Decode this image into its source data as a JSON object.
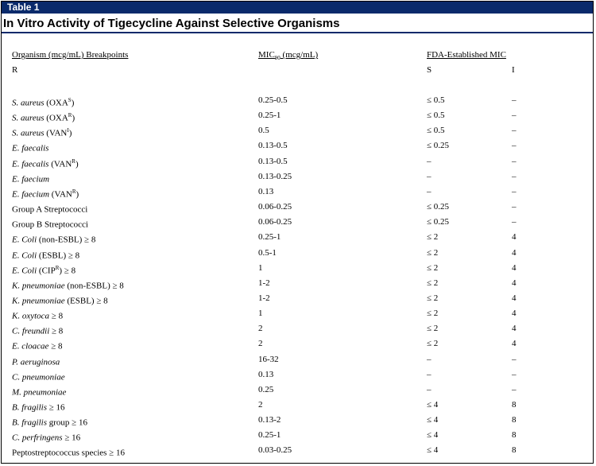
{
  "table_label": "Table 1",
  "title": "In Vitro Activity of Tigecycline Against Selective Organisms",
  "headers": {
    "organism": "Organism (mcg/mL) Breakpoints",
    "mic_prefix": "MIC",
    "mic_sub": "90",
    "mic_suffix": " (mcg/mL)",
    "fda": "FDA-Established MIC",
    "r": "R",
    "s": "S",
    "i": "I"
  },
  "rows": [
    {
      "org_italic": "S. aureus",
      "org_rest": " (OXA",
      "org_sup": "S",
      "org_tail": ")",
      "mic": "0.25-0.5",
      "s": "≤ 0.5",
      "i": "–"
    },
    {
      "org_italic": "S. aureus",
      "org_rest": " (OXA",
      "org_sup": "R",
      "org_tail": ")",
      "mic": "0.25-1",
      "s": "≤ 0.5",
      "i": "–"
    },
    {
      "org_italic": "S. aureus",
      "org_rest": " (VAN",
      "org_sup": "I",
      "org_tail": ")",
      "mic": "0.5",
      "s": "≤ 0.5",
      "i": "–"
    },
    {
      "org_italic": "E. faecalis",
      "org_rest": "",
      "org_sup": "",
      "org_tail": "",
      "mic": "0.13-0.5",
      "s": "≤ 0.25",
      "i": "–"
    },
    {
      "org_italic": "E. faecalis",
      "org_rest": " (VAN",
      "org_sup": "R",
      "org_tail": ")",
      "mic": "0.13-0.5",
      "s": "–",
      "i": "–"
    },
    {
      "org_italic": "E. faecium",
      "org_rest": "",
      "org_sup": "",
      "org_tail": "",
      "mic": "0.13-0.25",
      "s": "–",
      "i": "–"
    },
    {
      "org_italic": "E. faecium",
      "org_rest": " (VAN",
      "org_sup": "R",
      "org_tail": ")",
      "mic": "0.13",
      "s": "–",
      "i": "–"
    },
    {
      "org_italic": "",
      "org_rest": "Group A Streptococci",
      "org_sup": "",
      "org_tail": "",
      "mic": "0.06-0.25",
      "s": "≤ 0.25",
      "i": "–"
    },
    {
      "org_italic": "",
      "org_rest": "Group B Streptococci",
      "org_sup": "",
      "org_tail": "",
      "mic": "0.06-0.25",
      "s": "≤ 0.25",
      "i": "–"
    },
    {
      "org_italic": "E. Coli",
      "org_rest": " (non-ESBL) ≥ 8",
      "org_sup": "",
      "org_tail": "",
      "mic": "0.25-1",
      "s": "≤ 2",
      "i": "4"
    },
    {
      "org_italic": "E. Coli",
      "org_rest": " (ESBL) ≥ 8",
      "org_sup": "",
      "org_tail": "",
      "mic": "0.5-1",
      "s": "≤ 2",
      "i": "4"
    },
    {
      "org_italic": "E. Coli",
      "org_rest": " (CIP",
      "org_sup": "R",
      "org_tail": ") ≥ 8",
      "mic": "1",
      "s": "≤ 2",
      "i": "4"
    },
    {
      "org_italic": "K. pneumoniae",
      "org_rest": " (non-ESBL) ≥ 8",
      "org_sup": "",
      "org_tail": "",
      "mic": "1-2",
      "s": "≤ 2",
      "i": "4"
    },
    {
      "org_italic": "K. pneumoniae",
      "org_rest": " (ESBL) ≥ 8",
      "org_sup": "",
      "org_tail": "",
      "mic": "1-2",
      "s": "≤ 2",
      "i": "4"
    },
    {
      "org_italic": "K. oxytoca",
      "org_rest": " ≥ 8",
      "org_sup": "",
      "org_tail": "",
      "mic": "1",
      "s": "≤ 2",
      "i": "4"
    },
    {
      "org_italic": "C. freundii",
      "org_rest": " ≥ 8",
      "org_sup": "",
      "org_tail": "",
      "mic": "2",
      "s": "≤ 2",
      "i": "4"
    },
    {
      "org_italic": "E. cloacae",
      "org_rest": " ≥ 8",
      "org_sup": "",
      "org_tail": "",
      "mic": "2",
      "s": "≤ 2",
      "i": "4"
    },
    {
      "org_italic": "P. aeruginosa",
      "org_rest": "",
      "org_sup": "",
      "org_tail": "",
      "mic": "16-32",
      "s": "–",
      "i": "–"
    },
    {
      "org_italic": "C. pneumoniae",
      "org_rest": "",
      "org_sup": "",
      "org_tail": "",
      "mic": "0.13",
      "s": "–",
      "i": "–"
    },
    {
      "org_italic": "M. pneumoniae",
      "org_rest": "",
      "org_sup": "",
      "org_tail": "",
      "mic": "0.25",
      "s": "–",
      "i": "–"
    },
    {
      "org_italic": "B. fragilis",
      "org_rest": " ≥ 16",
      "org_sup": "",
      "org_tail": "",
      "mic": "2",
      "s": "≤ 4",
      "i": "8"
    },
    {
      "org_italic": "B. fragilis",
      "org_rest": " group ≥ 16",
      "org_sup": "",
      "org_tail": "",
      "mic": "0.13-2",
      "s": "≤ 4",
      "i": "8"
    },
    {
      "org_italic": "C. perfringens",
      "org_rest": " ≥ 16",
      "org_sup": "",
      "org_tail": "",
      "mic": "0.25-1",
      "s": "≤ 4",
      "i": "8"
    },
    {
      "org_italic": "",
      "org_rest": "Peptostreptococcus species ≥ 16",
      "org_sup": "",
      "org_tail": "",
      "mic": "0.03-0.25",
      "s": "≤ 4",
      "i": "8"
    }
  ]
}
